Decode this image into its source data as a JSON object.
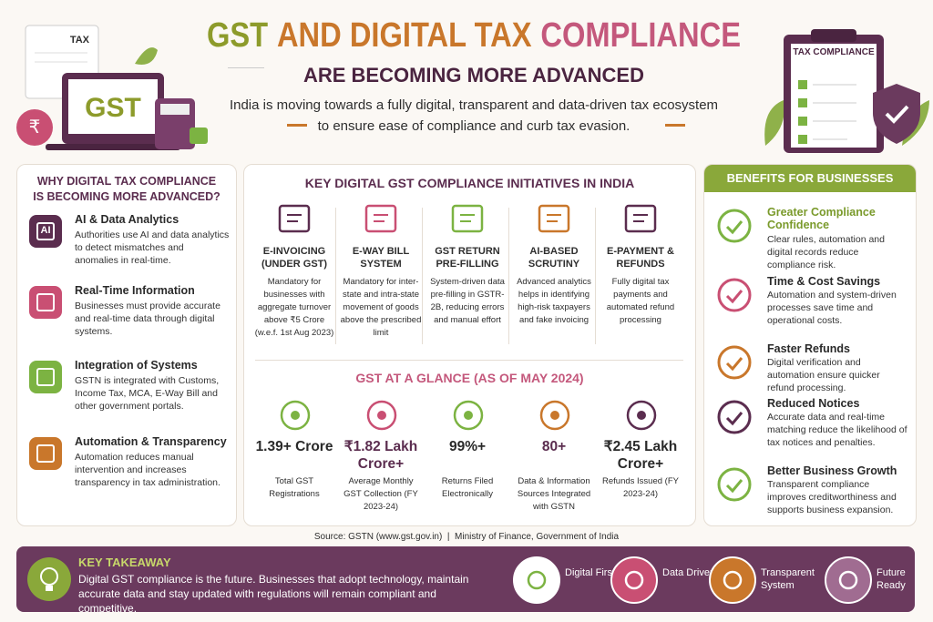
{
  "header": {
    "title_parts": [
      {
        "text": "GST",
        "color": "#8d9b2b"
      },
      {
        "text": "AND DIGITAL TAX",
        "color": "#c9772b"
      },
      {
        "text": "COMPLIANCE",
        "color": "#c4587c"
      }
    ],
    "subtitle": "ARE BECOMING MORE ADVANCED",
    "description": [
      "India is moving towards a fully digital, transparent and data-driven tax ecosystem",
      "to ensure ease of compliance and curb tax evasion."
    ],
    "illustration_left": {
      "document_label": "TAX",
      "screen_label": "GST"
    },
    "illustration_right": {
      "clipboard_label": "TAX COMPLIANCE"
    }
  },
  "left_panel": {
    "title": "WHY DIGITAL TAX COMPLIANCE IS BECOMING MORE ADVANCED?",
    "items": [
      {
        "icon_label": "AI",
        "title": "AI & Data Analytics",
        "text": "Authorities use AI and data analytics to detect mismatches and anomalies in real-time."
      },
      {
        "title": "Real-Time Information",
        "text": "Businesses must provide accurate and real-time data through digital systems."
      },
      {
        "title": "Integration of Systems",
        "text": "GSTN is integrated with Customs, Income Tax, MCA, E-Way Bill and other government portals."
      },
      {
        "title": "Automation & Transparency",
        "text": "Automation reduces manual intervention and increases transparency in tax administration."
      }
    ]
  },
  "middle_panel": {
    "title": "KEY DIGITAL GST COMPLIANCE INITIATIVES IN INDIA",
    "initiatives": [
      {
        "title": "E-INVOICING (UNDER GST)",
        "text": "Mandatory for businesses with aggregate turnover above ₹5 Crore (w.e.f. 1st Aug 2023)"
      },
      {
        "title": "E-WAY BILL SYSTEM",
        "text": "Mandatory for inter-state and intra-state movement of goods above the prescribed limit"
      },
      {
        "title": "GST RETURN PRE-FILLING",
        "text": "System-driven data pre-filling in GSTR-2B, reducing errors and manual effort"
      },
      {
        "title": "AI-BASED SCRUTINY",
        "text": "Advanced analytics helps in identifying high-risk taxpayers and fake invoicing"
      },
      {
        "title": "E-PAYMENT & REFUNDS",
        "text": "Fully digital tax payments and automated refund processing"
      }
    ],
    "glance_title": "GST AT A GLANCE (AS OF MAY 2024)",
    "stats": [
      {
        "value": "1.39+ Crore",
        "label": "Total GST Registrations"
      },
      {
        "value": "₹1.82 Lakh Crore+",
        "label": "Average Monthly GST Collection (FY 2023-24)"
      },
      {
        "value": "99%+",
        "label": "Returns Filed Electronically"
      },
      {
        "value": "80+",
        "label": "Data & Information Sources Integrated with GSTN"
      },
      {
        "value": "₹2.45 Lakh Crore+",
        "label": "Refunds Issued (FY 2023-24)"
      }
    ]
  },
  "right_panel": {
    "title": "BENEFITS FOR BUSINESSES",
    "benefits": [
      {
        "title": "Greater Compliance Confidence",
        "text": "Clear rules, automation and digital records reduce compliance risk."
      },
      {
        "title": "Time & Cost Savings",
        "text": "Automation and system-driven processes save time and operational costs."
      },
      {
        "title": "Faster Refunds",
        "text": "Digital verification and automation ensure quicker refund processing."
      },
      {
        "title": "Reduced Notices",
        "text": "Accurate data and real-time matching reduce the likelihood of tax notices and penalties."
      },
      {
        "title": "Better Business Growth",
        "text": "Transparent compliance improves creditworthiness and supports business expansion."
      }
    ]
  },
  "source": "Source: GSTN (www.gst.gov.in)  |  Ministry of Finance, Government of India",
  "takeaway": {
    "title": "KEY TAKEAWAY",
    "text": "Digital GST compliance is the future. Businesses that adopt technology, maintain accurate data and stay updated with regulations will remain compliant and competitive.",
    "badges": [
      "Digital First",
      "Data Driven",
      "Transparent System",
      "Future Ready"
    ]
  }
}
